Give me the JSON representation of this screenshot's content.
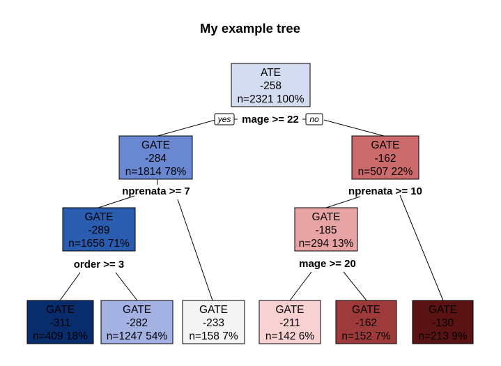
{
  "title": "My example tree",
  "branch_labels": {
    "yes": "yes",
    "no": "no"
  },
  "nodes": [
    {
      "id": "root",
      "lines": [
        "ATE",
        "-258",
        "n=2321  100%"
      ],
      "fill": "#d4dcf2",
      "text_color": "#000000"
    },
    {
      "id": "l",
      "lines": [
        "GATE",
        "-284",
        "n=1814  78%"
      ],
      "fill": "#6a88d2",
      "text_color": "#000000"
    },
    {
      "id": "r",
      "lines": [
        "GATE",
        "-162",
        "n=507  22%"
      ],
      "fill": "#cc6b6b",
      "text_color": "#000000"
    },
    {
      "id": "ll",
      "lines": [
        "GATE",
        "-289",
        "n=1656  71%"
      ],
      "fill": "#2a5cb0",
      "text_color": "#000000"
    },
    {
      "id": "rl",
      "lines": [
        "GATE",
        "-185",
        "n=294  13%"
      ],
      "fill": "#e8a4a4",
      "text_color": "#000000"
    },
    {
      "id": "lll",
      "lines": [
        "GATE",
        "-311",
        "n=409  18%"
      ],
      "fill": "#082c6c",
      "text_color": "#000000"
    },
    {
      "id": "llr",
      "lines": [
        "GATE",
        "-282",
        "n=1247  54%"
      ],
      "fill": "#a3b2e2",
      "text_color": "#000000"
    },
    {
      "id": "lr",
      "lines": [
        "GATE",
        "-233",
        "n=158  7%"
      ],
      "fill": "#f4f4f4",
      "text_color": "#000000"
    },
    {
      "id": "rll",
      "lines": [
        "GATE",
        "-211",
        "n=142  6%"
      ],
      "fill": "#f8d2d2",
      "text_color": "#000000"
    },
    {
      "id": "rlr",
      "lines": [
        "GATE",
        "-162",
        "n=152  7%"
      ],
      "fill": "#9e3a3a",
      "text_color": "#000000"
    },
    {
      "id": "rr",
      "lines": [
        "GATE",
        "-130",
        "n=213  9%"
      ],
      "fill": "#5a1212",
      "text_color": "#000000"
    }
  ],
  "splits": [
    {
      "id": "s-root",
      "label": "mage >= 22"
    },
    {
      "id": "s-l",
      "label": "nprenata >= 7"
    },
    {
      "id": "s-r",
      "label": "nprenata >= 10"
    },
    {
      "id": "s-ll",
      "label": "order >= 3"
    },
    {
      "id": "s-rl",
      "label": "mage >= 20"
    }
  ]
}
